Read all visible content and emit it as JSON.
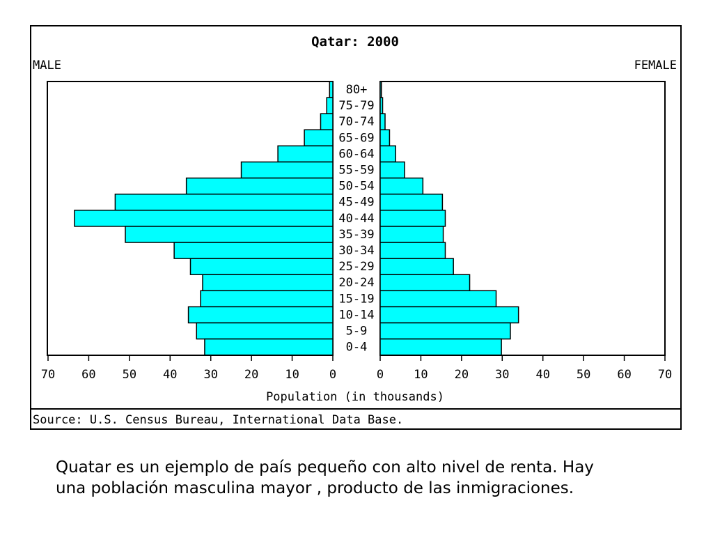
{
  "chart_data": {
    "type": "bar",
    "title": "Qatar: 2000",
    "left_label": "MALE",
    "right_label": "FEMALE",
    "xlabel": "Population (in thousands)",
    "source": "Source: U.S. Census Bureau, International Data Base.",
    "xlim": [
      0,
      70
    ],
    "ticks": [
      "70",
      "60",
      "50",
      "40",
      "30",
      "20",
      "10",
      "0"
    ],
    "categories": [
      "80+",
      "75-79",
      "70-74",
      "65-69",
      "60-64",
      "55-59",
      "50-54",
      "45-49",
      "40-44",
      "35-39",
      "30-34",
      "25-29",
      "20-24",
      "15-19",
      "10-14",
      "5-9",
      "0-4"
    ],
    "series": [
      {
        "name": "MALE",
        "values": [
          0.8,
          1.5,
          3.0,
          7.0,
          13.5,
          22.5,
          36.0,
          53.5,
          63.5,
          51.0,
          39.0,
          35.0,
          32.0,
          32.5,
          35.5,
          33.5,
          31.5
        ]
      },
      {
        "name": "FEMALE",
        "values": [
          0.3,
          0.6,
          1.2,
          2.3,
          3.8,
          6.0,
          10.5,
          15.3,
          16.0,
          15.5,
          16.0,
          18.0,
          22.0,
          28.5,
          34.0,
          32.0,
          29.8
        ]
      }
    ],
    "bar_color": "#00ffff",
    "grid": false
  },
  "caption": {
    "line1": "Quatar es un ejemplo de país pequeño con alto nivel de renta. Hay",
    "line2": "una población masculina mayor , producto de las inmigraciones."
  }
}
